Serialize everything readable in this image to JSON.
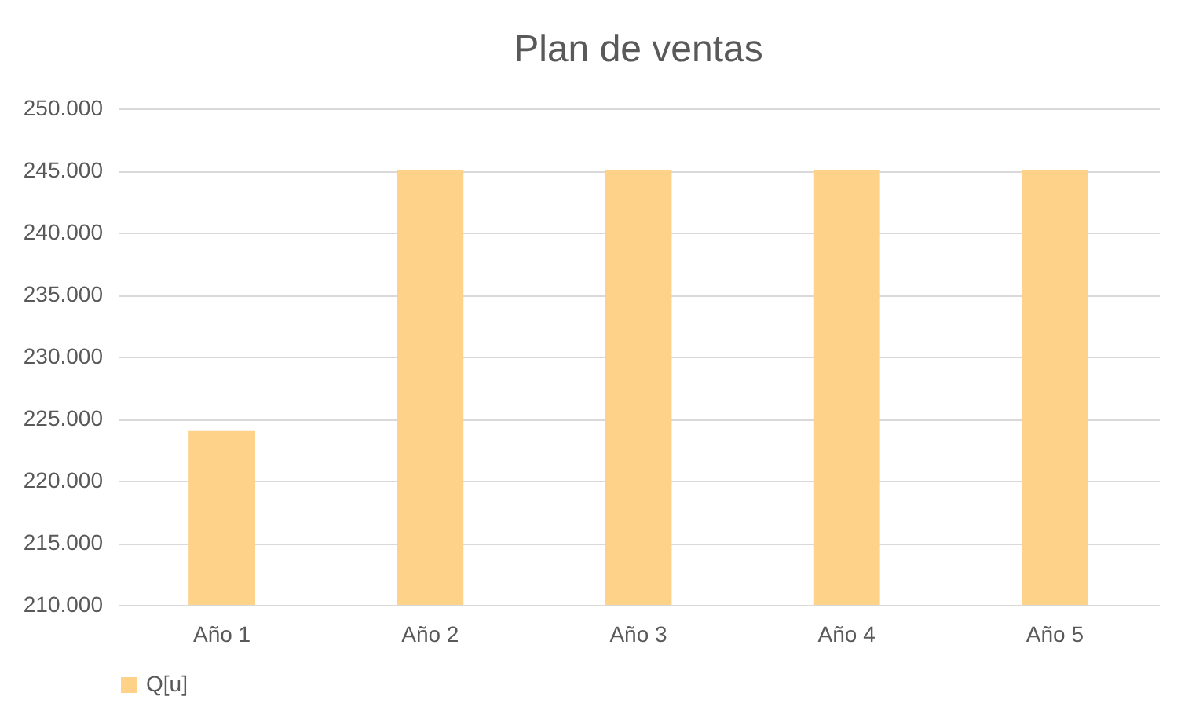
{
  "chart_data": {
    "type": "bar",
    "title": "Plan de ventas",
    "categories": [
      "Año 1",
      "Año 2",
      "Año 3",
      "Año 4",
      "Año 5"
    ],
    "series": [
      {
        "name": "Q[u]",
        "color": "#ffd28a",
        "values": [
          224000,
          245000,
          245000,
          245000,
          245000
        ]
      }
    ],
    "ylim": [
      210000,
      250000
    ],
    "yticks": [
      {
        "value": 210000,
        "label": "210.000"
      },
      {
        "value": 215000,
        "label": "215.000"
      },
      {
        "value": 220000,
        "label": "220.000"
      },
      {
        "value": 225000,
        "label": "225.000"
      },
      {
        "value": 230000,
        "label": "230.000"
      },
      {
        "value": 235000,
        "label": "235.000"
      },
      {
        "value": 240000,
        "label": "240.000"
      },
      {
        "value": 245000,
        "label": "245.000"
      },
      {
        "value": 250000,
        "label": "250.000"
      }
    ],
    "grid": "y",
    "legend": "bottom"
  }
}
